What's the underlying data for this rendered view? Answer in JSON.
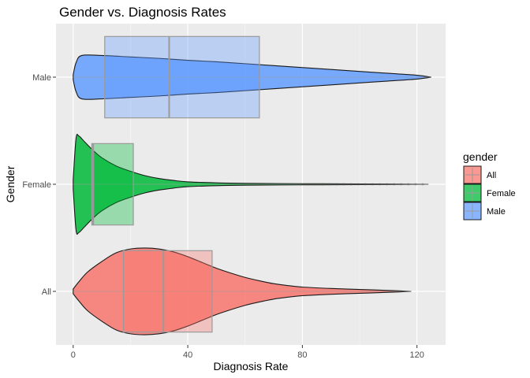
{
  "chart_data": {
    "type": "violin",
    "title": "Gender vs. Diagnosis Rates",
    "xlabel": "Diagnosis Rate",
    "ylabel": "Gender",
    "xlim": [
      -6,
      130
    ],
    "x_ticks": [
      0,
      40,
      80,
      120
    ],
    "grid": true,
    "legend": {
      "title": "gender",
      "position": "right"
    },
    "categories": [
      "All",
      "Female",
      "Male"
    ],
    "series": [
      {
        "name": "All",
        "color": "#F8766D",
        "box": {
          "q1": 17.5,
          "median": 31.5,
          "q3": 48.5
        },
        "range": [
          0,
          118
        ],
        "density": [
          [
            0,
            0.05
          ],
          [
            2,
            0.2
          ],
          [
            5,
            0.4
          ],
          [
            10,
            0.62
          ],
          [
            15,
            0.8
          ],
          [
            20,
            0.88
          ],
          [
            25,
            0.9
          ],
          [
            30,
            0.88
          ],
          [
            35,
            0.82
          ],
          [
            40,
            0.72
          ],
          [
            45,
            0.6
          ],
          [
            50,
            0.48
          ],
          [
            55,
            0.38
          ],
          [
            60,
            0.29
          ],
          [
            65,
            0.22
          ],
          [
            70,
            0.16
          ],
          [
            75,
            0.12
          ],
          [
            80,
            0.09
          ],
          [
            90,
            0.06
          ],
          [
            100,
            0.04
          ],
          [
            110,
            0.02
          ],
          [
            118,
            0.0
          ]
        ]
      },
      {
        "name": "Female",
        "color": "#00BA38",
        "box": {
          "q1": 6.5,
          "median": 7,
          "q3": 21
        },
        "range": [
          0,
          124
        ],
        "density": [
          [
            0,
            0.1
          ],
          [
            1,
            0.95
          ],
          [
            2,
            1.0
          ],
          [
            4,
            0.88
          ],
          [
            7,
            0.7
          ],
          [
            10,
            0.55
          ],
          [
            15,
            0.38
          ],
          [
            20,
            0.27
          ],
          [
            25,
            0.18
          ],
          [
            30,
            0.12
          ],
          [
            35,
            0.08
          ],
          [
            40,
            0.05
          ],
          [
            50,
            0.03
          ],
          [
            60,
            0.02
          ],
          [
            80,
            0.012
          ],
          [
            100,
            0.008
          ],
          [
            124,
            0.0
          ]
        ]
      },
      {
        "name": "Male",
        "color": "#619CFF",
        "box": {
          "q1": 11,
          "median": 33.5,
          "q3": 65
        },
        "range": [
          0,
          125
        ],
        "density": [
          [
            0,
            0.05
          ],
          [
            1,
            0.3
          ],
          [
            3,
            0.45
          ],
          [
            10,
            0.45
          ],
          [
            20,
            0.42
          ],
          [
            30,
            0.39
          ],
          [
            40,
            0.35
          ],
          [
            50,
            0.32
          ],
          [
            60,
            0.28
          ],
          [
            70,
            0.24
          ],
          [
            80,
            0.2
          ],
          [
            90,
            0.16
          ],
          [
            100,
            0.12
          ],
          [
            110,
            0.08
          ],
          [
            120,
            0.04
          ],
          [
            125,
            0.0
          ]
        ]
      }
    ]
  }
}
